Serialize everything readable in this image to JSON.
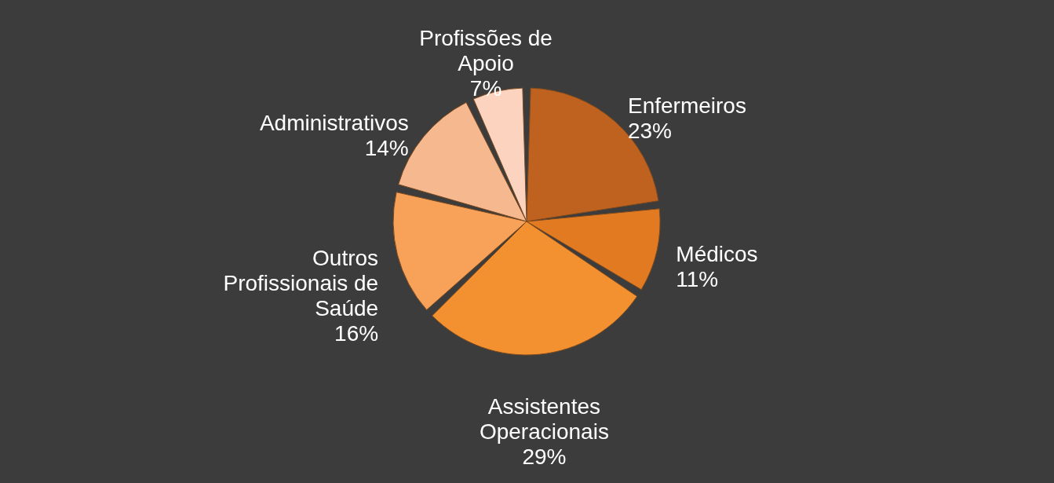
{
  "chart_data": {
    "type": "pie",
    "categories": [
      "Enfermeiros",
      "Médicos",
      "Assistentes Operacionais",
      "Outros Profissionais de Saúde",
      "Administrativos",
      "Profissões de Apoio"
    ],
    "values": [
      23,
      11,
      29,
      16,
      14,
      7
    ],
    "colors": [
      "#c0621f",
      "#e27a22",
      "#f39030",
      "#f7a258",
      "#f6b88f",
      "#fbd3bf"
    ],
    "value_labels": [
      "23%",
      "11%",
      "29%",
      "16%",
      "14%",
      "7%"
    ]
  }
}
